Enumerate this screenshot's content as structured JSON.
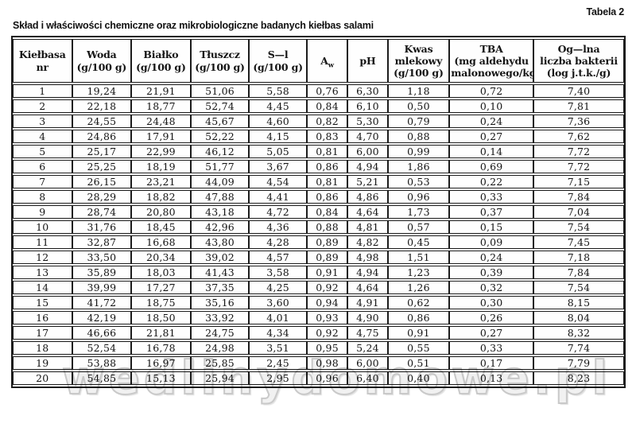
{
  "page": {
    "table_label": "Tabela 2",
    "title": "Skład i właściwości chemiczne oraz mikrobiologiczne badanych kiełbas salami",
    "watermark": "wedlinydomowe.pl"
  },
  "table": {
    "columns": [
      {
        "lines": [
          "Kiełbasa",
          "nr"
        ]
      },
      {
        "lines": [
          "Woda",
          "(g/100 g)"
        ]
      },
      {
        "lines": [
          "Białko",
          "(g/100 g)"
        ]
      },
      {
        "lines": [
          "Tłuszcz",
          "(g/100 g)"
        ]
      },
      {
        "lines": [
          "S—l",
          "(g/100 g)"
        ]
      },
      {
        "lines": [
          "A"
        ],
        "sub": "w"
      },
      {
        "lines": [
          "pH"
        ]
      },
      {
        "lines": [
          "Kwas",
          "mlekowy",
          "(g/100 g)"
        ]
      },
      {
        "lines": [
          "TBA",
          "(mg aldehydu",
          "malonowego/kg)"
        ]
      },
      {
        "lines": [
          "Og—lna",
          "liczba bakterii",
          "(log j.t.k./g)"
        ]
      }
    ],
    "rows": [
      [
        "1",
        "19,24",
        "21,91",
        "51,06",
        "5,58",
        "0,76",
        "6,30",
        "1,18",
        "0,72",
        "7,40"
      ],
      [
        "2",
        "22,18",
        "18,77",
        "52,74",
        "4,45",
        "0,84",
        "6,10",
        "0,50",
        "0,10",
        "7,81"
      ],
      [
        "3",
        "24,55",
        "24,48",
        "45,67",
        "4,60",
        "0,82",
        "5,30",
        "0,79",
        "0,24",
        "7,36"
      ],
      [
        "4",
        "24,86",
        "17,91",
        "52,22",
        "4,15",
        "0,83",
        "4,70",
        "0,88",
        "0,27",
        "7,62"
      ],
      [
        "5",
        "25,17",
        "22,99",
        "46,12",
        "5,05",
        "0,81",
        "6,00",
        "0,99",
        "0,14",
        "7,72"
      ],
      [
        "6",
        "25,25",
        "18,19",
        "51,77",
        "3,67",
        "0,86",
        "4,94",
        "1,86",
        "0,69",
        "7,72"
      ],
      [
        "7",
        "26,15",
        "23,21",
        "44,09",
        "4,54",
        "0,81",
        "5,21",
        "0,53",
        "0,22",
        "7,15"
      ],
      [
        "8",
        "28,29",
        "18,82",
        "47,88",
        "4,41",
        "0,86",
        "4,86",
        "0,96",
        "0,33",
        "7,84"
      ],
      [
        "9",
        "28,74",
        "20,80",
        "43,18",
        "4,72",
        "0,84",
        "4,64",
        "1,73",
        "0,37",
        "7,04"
      ],
      [
        "10",
        "31,76",
        "18,45",
        "42,96",
        "4,36",
        "0,88",
        "4,81",
        "0,57",
        "0,15",
        "7,54"
      ],
      [
        "11",
        "32,87",
        "16,68",
        "43,80",
        "4,28",
        "0,89",
        "4,82",
        "0,45",
        "0,09",
        "7,45"
      ],
      [
        "12",
        "33,50",
        "20,34",
        "39,02",
        "4,57",
        "0,89",
        "4,98",
        "1,51",
        "0,24",
        "7,18"
      ],
      [
        "13",
        "35,89",
        "18,03",
        "41,43",
        "3,58",
        "0,91",
        "4,94",
        "1,23",
        "0,39",
        "7,84"
      ],
      [
        "14",
        "39,99",
        "17,27",
        "37,35",
        "4,25",
        "0,92",
        "4,64",
        "1,26",
        "0,32",
        "7,54"
      ],
      [
        "15",
        "41,72",
        "18,75",
        "35,16",
        "3,60",
        "0,94",
        "4,91",
        "0,62",
        "0,30",
        "8,15"
      ],
      [
        "16",
        "42,19",
        "18,50",
        "33,92",
        "4,01",
        "0,93",
        "4,90",
        "0,86",
        "0,26",
        "8,04"
      ],
      [
        "17",
        "46,66",
        "21,81",
        "24,75",
        "4,34",
        "0,92",
        "4,75",
        "0,91",
        "0,27",
        "8,32"
      ],
      [
        "18",
        "52,54",
        "16,78",
        "24,98",
        "3,51",
        "0,95",
        "5,24",
        "0,55",
        "0,33",
        "7,74"
      ],
      [
        "19",
        "53,88",
        "16,97",
        "25,85",
        "2,45",
        "0,98",
        "6,00",
        "0,51",
        "0,17",
        "7,79"
      ],
      [
        "20",
        "54,85",
        "15,13",
        "25,94",
        "2,95",
        "0,96",
        "6,40",
        "0,40",
        "0,13",
        "8,23"
      ]
    ]
  }
}
